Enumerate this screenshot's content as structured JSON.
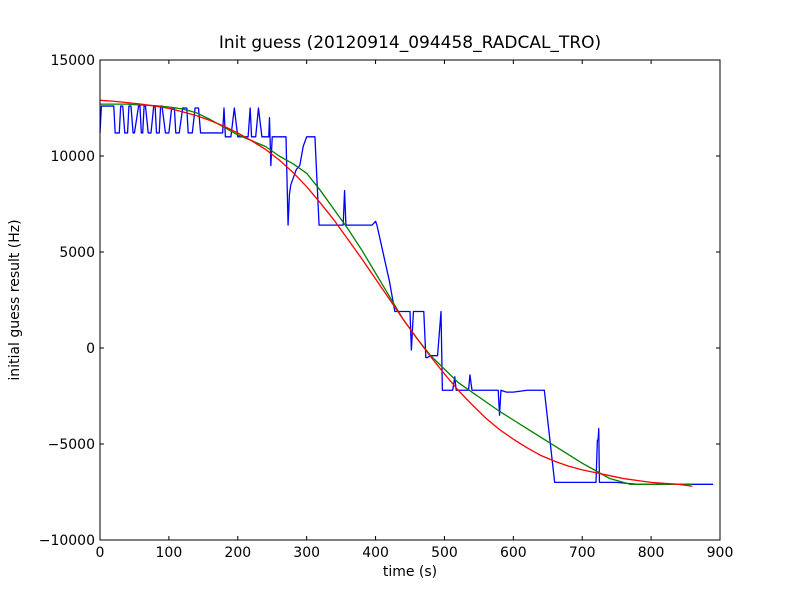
{
  "chart_data": {
    "type": "line",
    "title": "Init guess (20120914_094458_RADCAL_TRO)",
    "xlabel": "time (s)",
    "ylabel": "initial guess result (Hz)",
    "xlim": [
      0,
      900
    ],
    "ylim": [
      -10000,
      15000
    ],
    "x_ticks": [
      0,
      100,
      200,
      300,
      400,
      500,
      600,
      700,
      800,
      900
    ],
    "x_tick_labels": [
      "0",
      "100",
      "200",
      "300",
      "400",
      "500",
      "600",
      "700",
      "800",
      "900"
    ],
    "y_ticks": [
      15000,
      10000,
      5000,
      0,
      -5000,
      -10000
    ],
    "y_tick_labels": [
      "15000",
      "10000",
      "5000",
      "0",
      "−5000",
      "−10000"
    ],
    "grid": false,
    "legend": false,
    "series": [
      {
        "color": "#0000ff",
        "x": [
          0,
          2,
          3,
          20,
          22,
          28,
          30,
          33,
          36,
          40,
          42,
          45,
          48,
          50,
          56,
          58,
          60,
          62,
          64,
          66,
          70,
          74,
          78,
          80,
          82,
          86,
          88,
          90,
          95,
          100,
          104,
          108,
          110,
          115,
          120,
          126,
          128,
          134,
          138,
          140,
          143,
          146,
          150,
          155,
          160,
          165,
          170,
          175,
          178,
          180,
          182,
          186,
          190,
          195,
          200,
          205,
          210,
          215,
          218,
          220,
          222,
          226,
          230,
          235,
          240,
          245,
          246,
          248,
          250,
          252,
          255,
          260,
          265,
          270,
          273,
          275,
          277,
          280,
          285,
          290,
          295,
          300,
          305,
          312,
          318,
          320,
          325,
          330,
          340,
          345,
          350,
          353,
          355,
          357,
          360,
          380,
          395,
          400,
          402,
          420,
          428,
          435,
          448,
          450,
          452,
          455,
          460,
          465,
          470,
          473,
          475,
          480,
          485,
          490,
          495,
          497,
          498,
          500,
          512,
          515,
          517,
          520,
          530,
          535,
          537,
          540,
          560,
          578,
          580,
          582,
          590,
          600,
          620,
          630,
          645,
          660,
          700,
          718,
          720,
          722,
          723,
          724,
          725,
          726,
          730,
          750,
          780,
          800,
          880,
          890
        ],
        "y": [
          11200,
          12600,
          12600,
          12600,
          11200,
          11200,
          12600,
          12600,
          11200,
          11200,
          12600,
          12600,
          11200,
          11200,
          12600,
          12600,
          11200,
          11200,
          12600,
          12600,
          11200,
          11200,
          12600,
          12600,
          11200,
          11200,
          12600,
          12600,
          11200,
          11200,
          12500,
          12500,
          11200,
          11200,
          12500,
          12500,
          11200,
          11200,
          12500,
          12500,
          12500,
          11200,
          11200,
          11200,
          11200,
          11200,
          11200,
          11200,
          11200,
          12500,
          11000,
          11000,
          11000,
          12500,
          11000,
          11000,
          11000,
          11000,
          12500,
          11000,
          11000,
          11000,
          12500,
          11000,
          11000,
          11000,
          12000,
          9500,
          11000,
          11000,
          11000,
          11000,
          11000,
          11000,
          6400,
          8000,
          8500,
          8800,
          9300,
          9500,
          10500,
          11000,
          11000,
          11000,
          6400,
          6400,
          6400,
          6400,
          6400,
          6400,
          6400,
          6400,
          8200,
          6400,
          6400,
          6400,
          6400,
          6600,
          6400,
          3500,
          1900,
          1900,
          1900,
          1900,
          -100,
          1900,
          1900,
          1900,
          1900,
          -500,
          -500,
          -400,
          -400,
          -400,
          1900,
          -2200,
          -2200,
          -2200,
          -2200,
          -1500,
          -2200,
          -2200,
          -2200,
          -2200,
          -1400,
          -2200,
          -2200,
          -2200,
          -3500,
          -2200,
          -2300,
          -2300,
          -2200,
          -2200,
          -2200,
          -7000,
          -7000,
          -7000,
          -7000,
          -4800,
          -4800,
          -4200,
          -7000,
          -7000,
          -7000,
          -7000,
          -7100,
          -7100,
          -7100,
          -7100
        ]
      },
      {
        "color": "#008000",
        "x": [
          0,
          20,
          40,
          60,
          80,
          100,
          120,
          140,
          160,
          180,
          200,
          220,
          240,
          260,
          280,
          300,
          320,
          340,
          360,
          380,
          400,
          420,
          440,
          460,
          480,
          500,
          520,
          540,
          560,
          580,
          600,
          620,
          640,
          660,
          680,
          700,
          720,
          740,
          760,
          770,
          800,
          860
        ],
        "y": [
          12700,
          12700,
          12700,
          12650,
          12620,
          12550,
          12450,
          12250,
          11900,
          11500,
          11100,
          10800,
          10500,
          10000,
          9600,
          9100,
          8200,
          7200,
          6200,
          5100,
          3900,
          2700,
          1500,
          500,
          -400,
          -1100,
          -1800,
          -2300,
          -2800,
          -3300,
          -3750,
          -4200,
          -4650,
          -5100,
          -5550,
          -6000,
          -6400,
          -6800,
          -7000,
          -7100,
          -7100,
          -7100
        ]
      },
      {
        "color": "#ff0000",
        "x": [
          0,
          20,
          40,
          60,
          80,
          100,
          120,
          140,
          160,
          180,
          200,
          220,
          240,
          260,
          280,
          300,
          320,
          340,
          360,
          380,
          400,
          420,
          440,
          460,
          480,
          500,
          520,
          540,
          560,
          580,
          600,
          620,
          640,
          660,
          680,
          700,
          720,
          740,
          760,
          780,
          800,
          820,
          840,
          860
        ],
        "y": [
          12900,
          12850,
          12780,
          12700,
          12600,
          12480,
          12300,
          12100,
          11850,
          11550,
          11200,
          10800,
          10350,
          9800,
          9150,
          8400,
          7550,
          6650,
          5650,
          4650,
          3600,
          2550,
          1500,
          500,
          -450,
          -1350,
          -2200,
          -2950,
          -3650,
          -4250,
          -4750,
          -5200,
          -5600,
          -5900,
          -6150,
          -6350,
          -6500,
          -6650,
          -6800,
          -6900,
          -7000,
          -7050,
          -7100,
          -7200
        ]
      }
    ]
  }
}
